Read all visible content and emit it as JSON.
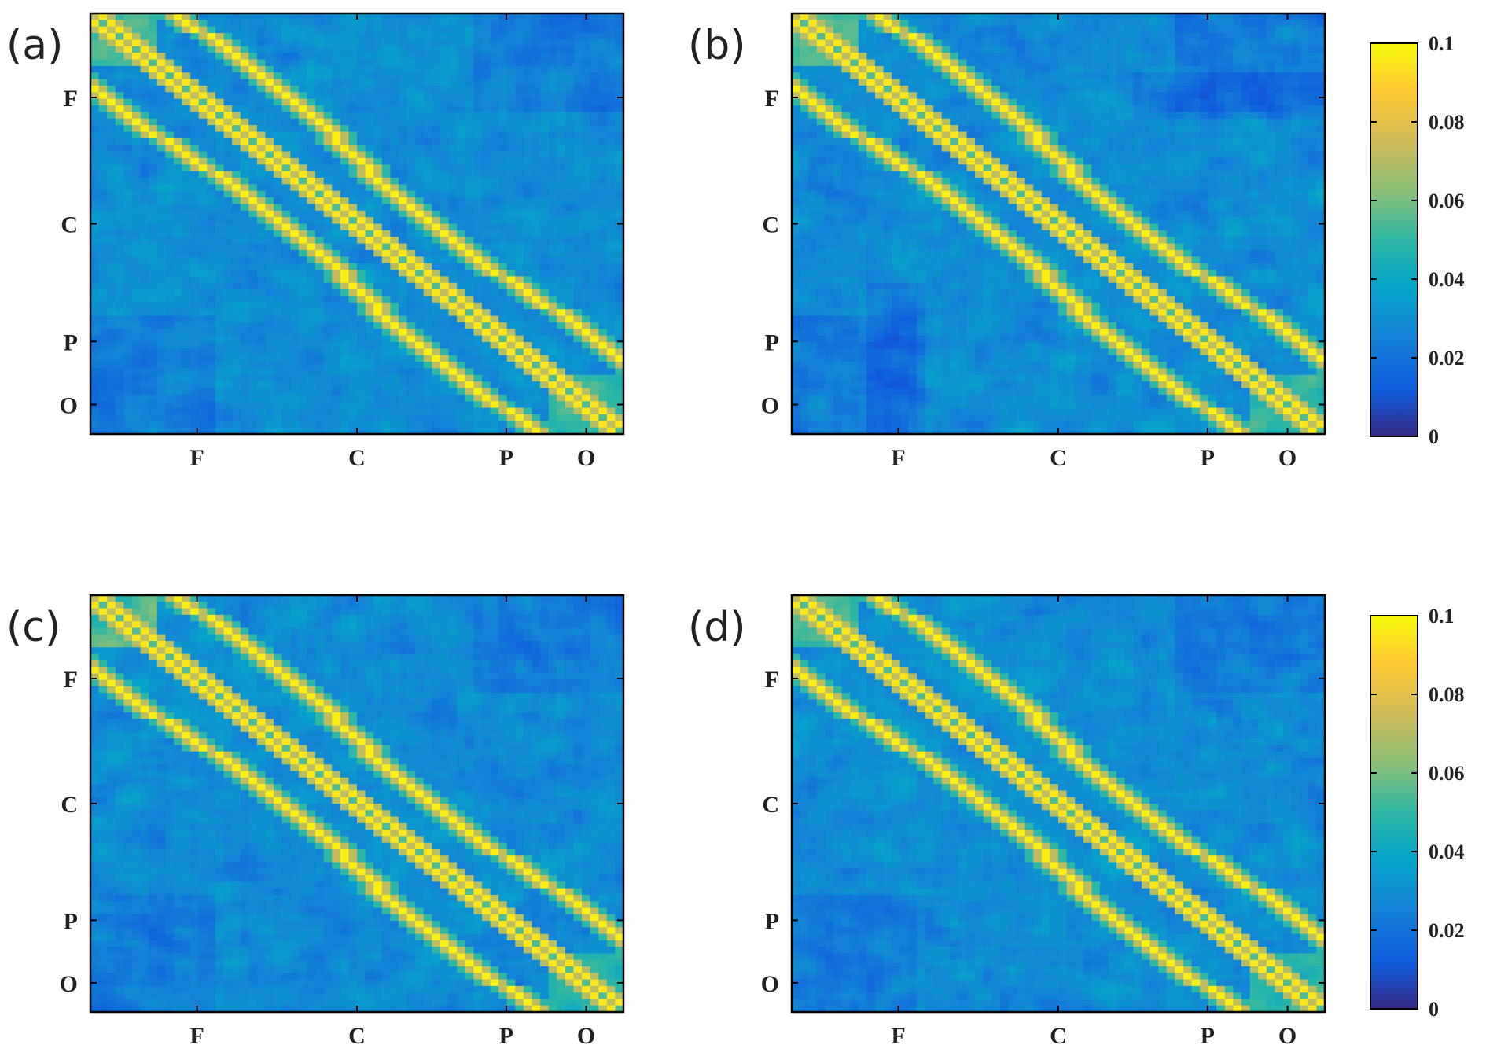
{
  "chart_data": [
    {
      "type": "heatmap",
      "panel_label": "(a)",
      "x_tick_labels": [
        "F",
        "C",
        "P",
        "O"
      ],
      "y_tick_labels": [
        "F",
        "C",
        "P",
        "O"
      ],
      "matrix_size": 64,
      "values_description": "symmetric electrode-pair matrix; maximum along main diagonal and two off-diagonal bands, background about 0.02-0.03",
      "ylim": [
        0,
        0.1
      ],
      "seed": 11,
      "variant": "a"
    },
    {
      "type": "heatmap",
      "panel_label": "(b)",
      "x_tick_labels": [
        "F",
        "C",
        "P",
        "O"
      ],
      "y_tick_labels": [
        "F",
        "C",
        "P",
        "O"
      ],
      "matrix_size": 64,
      "ylim": [
        0,
        0.1
      ],
      "seed": 23,
      "variant": "b"
    },
    {
      "type": "heatmap",
      "panel_label": "(c)",
      "x_tick_labels": [
        "F",
        "C",
        "P",
        "O"
      ],
      "y_tick_labels": [
        "F",
        "C",
        "P",
        "O"
      ],
      "matrix_size": 64,
      "ylim": [
        0,
        0.1
      ],
      "seed": 37,
      "variant": "c"
    },
    {
      "type": "heatmap",
      "panel_label": "(d)",
      "x_tick_labels": [
        "F",
        "C",
        "P",
        "O"
      ],
      "y_tick_labels": [
        "F",
        "C",
        "P",
        "O"
      ],
      "matrix_size": 64,
      "ylim": [
        0,
        0.1
      ],
      "seed": 51,
      "variant": "d"
    }
  ],
  "colorbars": [
    {
      "tick_labels": [
        "0.1",
        "0.08",
        "0.06",
        "0.04",
        "0.02",
        "0"
      ],
      "tick_values": [
        0.1,
        0.08,
        0.06,
        0.04,
        0.02,
        0
      ],
      "range": [
        0,
        0.1
      ]
    },
    {
      "tick_labels": [
        "0.1",
        "0.08",
        "0.06",
        "0.04",
        "0.02",
        "0"
      ],
      "tick_values": [
        0.1,
        0.08,
        0.06,
        0.04,
        0.02,
        0
      ],
      "range": [
        0,
        0.1
      ]
    }
  ],
  "colormap": "parula",
  "tick_positions": [
    0.2,
    0.5,
    0.78,
    0.93
  ]
}
